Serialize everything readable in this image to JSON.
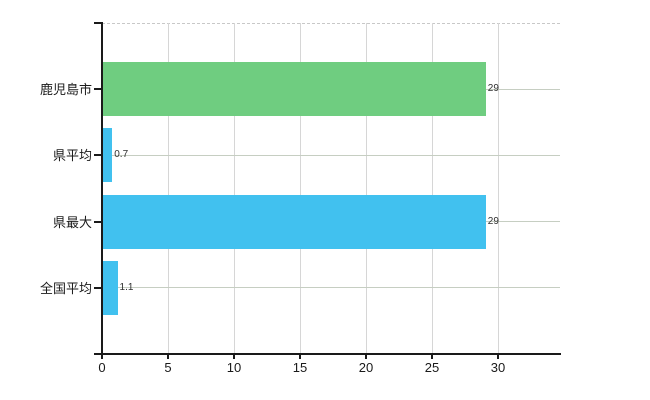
{
  "chart_data": {
    "type": "bar",
    "orientation": "horizontal",
    "title": "",
    "xlabel": "",
    "ylabel": "",
    "legend": "none",
    "grid": "on",
    "categories": [
      "鹿児島市",
      "県平均",
      "県最大",
      "全国平均"
    ],
    "values": [
      29,
      0.7,
      29,
      1.1
    ],
    "value_labels": [
      "29",
      "0.7",
      "29",
      "1.1"
    ],
    "bar_colors": [
      "#6fcd80",
      "#41c1ef",
      "#41c1ef",
      "#41c1ef"
    ],
    "x_ticks": [
      0,
      5,
      10,
      15,
      20,
      25,
      30
    ],
    "x_tick_labels": [
      "0",
      "5",
      "10",
      "15",
      "20",
      "25",
      "30"
    ],
    "xlim": [
      0,
      34.7
    ],
    "colors": {
      "bar_green": "#6fcd80",
      "bar_blue": "#41c1ef",
      "axis": "#1a1a1a",
      "vertical_grid": "#d6d6d6",
      "horizontal_grid": "#c6cec2",
      "top_border": "#c8c8c8",
      "label_text": "#1a1a1a",
      "value_text": "#303030",
      "background": "#ffffff"
    }
  }
}
